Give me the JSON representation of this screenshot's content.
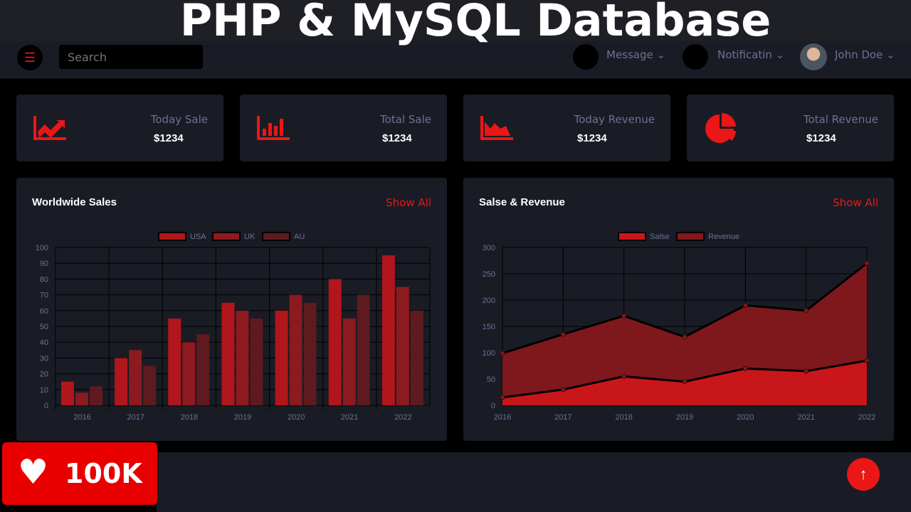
{
  "overlay": {
    "title": "PHP & MySQL Database",
    "likes": "100K"
  },
  "navbar": {
    "search_placeholder": "Search",
    "message": "Message",
    "notification": "Notificatin",
    "user": "John Doe"
  },
  "stats": [
    {
      "label": "Today Sale",
      "value": "$1234",
      "icon": "chart-line-icon"
    },
    {
      "label": "Total Sale",
      "value": "$1234",
      "icon": "chart-bar-icon"
    },
    {
      "label": "Today Revenue",
      "value": "$1234",
      "icon": "chart-area-icon"
    },
    {
      "label": "Total Revenue",
      "value": "$1234",
      "icon": "chart-pie-icon"
    }
  ],
  "colors": {
    "accent": "#eb1616",
    "panel": "#191c24"
  },
  "chart_data": [
    {
      "type": "bar",
      "title": "Worldwide Sales",
      "action": "Show All",
      "categories": [
        "2016",
        "2017",
        "2018",
        "2019",
        "2020",
        "2021",
        "2022"
      ],
      "series": [
        {
          "name": "USA",
          "color": "#b0161b",
          "values": [
            15,
            30,
            55,
            65,
            60,
            80,
            95
          ]
        },
        {
          "name": "UK",
          "color": "#8c1a1e",
          "values": [
            8,
            35,
            40,
            60,
            70,
            55,
            75
          ]
        },
        {
          "name": "AU",
          "color": "#5e1a1e",
          "values": [
            12,
            25,
            45,
            55,
            65,
            70,
            60
          ]
        }
      ],
      "ylim": [
        0,
        100
      ],
      "yticks": [
        0,
        10,
        20,
        30,
        40,
        50,
        60,
        70,
        80,
        90,
        100
      ],
      "legend": "top"
    },
    {
      "type": "area",
      "title": "Salse & Revenue",
      "action": "Show All",
      "categories": [
        "2016",
        "2017",
        "2018",
        "2019",
        "2020",
        "2021",
        "2022"
      ],
      "series": [
        {
          "name": "Salse",
          "color": "#c8161a",
          "values": [
            15,
            30,
            55,
            45,
            70,
            65,
            85
          ]
        },
        {
          "name": "Revenue",
          "color": "#84181d",
          "values": [
            99,
            135,
            170,
            130,
            190,
            180,
            270
          ]
        }
      ],
      "ylim": [
        0,
        300
      ],
      "yticks": [
        0,
        50,
        100,
        150,
        200,
        250,
        300
      ],
      "legend": "top"
    }
  ]
}
